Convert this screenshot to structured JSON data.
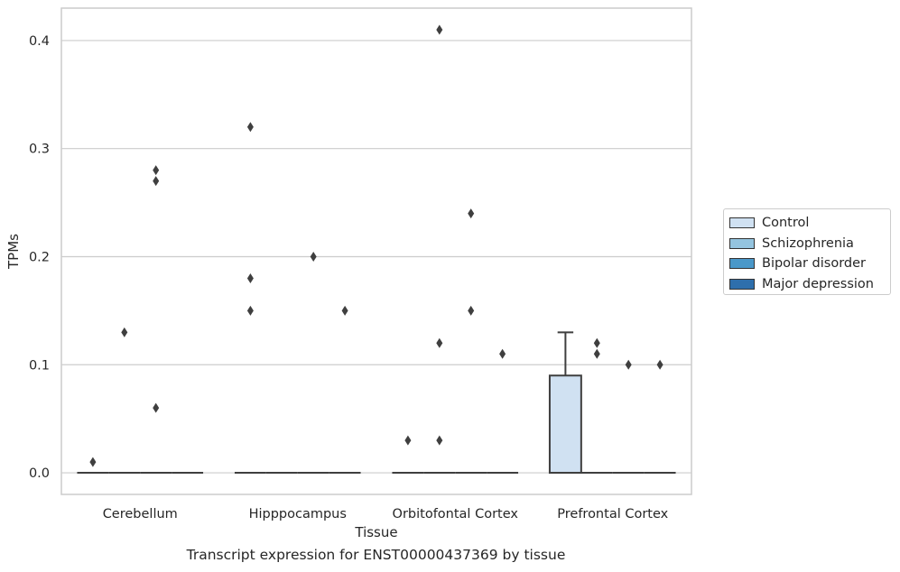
{
  "chart_data": {
    "type": "box",
    "title": "",
    "xlabel": "Tissue",
    "ylabel": "TPMs",
    "caption": "Transcript expression for ENST00000437369 by tissue",
    "ylim": [
      -0.02,
      0.43
    ],
    "yticks": [
      0.0,
      0.1,
      0.2,
      0.3,
      0.4
    ],
    "ytick_labels": [
      "0.0",
      "0.1",
      "0.2",
      "0.3",
      "0.4"
    ],
    "grid": "horizontal",
    "legend_position": "right",
    "categories": [
      "Cerebellum",
      "Hipppocampus",
      "Orbitofontal Cortex",
      "Prefrontal Cortex"
    ],
    "series": [
      {
        "name": "Control",
        "color": "#d0e1f2",
        "boxes": [
          {
            "q1": 0.0,
            "median": 0.0,
            "q3": 0.0,
            "whisker_low": 0.0,
            "whisker_high": 0.0,
            "outliers": [
              0.01
            ]
          },
          {
            "q1": 0.0,
            "median": 0.0,
            "q3": 0.0,
            "whisker_low": 0.0,
            "whisker_high": 0.0,
            "outliers": [
              0.32,
              0.18,
              0.15
            ]
          },
          {
            "q1": 0.0,
            "median": 0.0,
            "q3": 0.0,
            "whisker_low": 0.0,
            "whisker_high": 0.0,
            "outliers": [
              0.03
            ]
          },
          {
            "q1": 0.0,
            "median": 0.0,
            "q3": 0.09,
            "whisker_low": 0.0,
            "whisker_high": 0.13,
            "outliers": []
          }
        ]
      },
      {
        "name": "Schizophrenia",
        "color": "#94c4df",
        "boxes": [
          {
            "q1": 0.0,
            "median": 0.0,
            "q3": 0.0,
            "whisker_low": 0.0,
            "whisker_high": 0.0,
            "outliers": [
              0.13
            ]
          },
          {
            "q1": 0.0,
            "median": 0.0,
            "q3": 0.0,
            "whisker_low": 0.0,
            "whisker_high": 0.0,
            "outliers": []
          },
          {
            "q1": 0.0,
            "median": 0.0,
            "q3": 0.0,
            "whisker_low": 0.0,
            "whisker_high": 0.0,
            "outliers": [
              0.41,
              0.12,
              0.03
            ]
          },
          {
            "q1": 0.0,
            "median": 0.0,
            "q3": 0.0,
            "whisker_low": 0.0,
            "whisker_high": 0.0,
            "outliers": [
              0.12,
              0.11
            ]
          }
        ]
      },
      {
        "name": "Bipolar disorder",
        "color": "#4a98c9",
        "boxes": [
          {
            "q1": 0.0,
            "median": 0.0,
            "q3": 0.0,
            "whisker_low": 0.0,
            "whisker_high": 0.0,
            "outliers": [
              0.28,
              0.27,
              0.06
            ]
          },
          {
            "q1": 0.0,
            "median": 0.0,
            "q3": 0.0,
            "whisker_low": 0.0,
            "whisker_high": 0.0,
            "outliers": [
              0.2
            ]
          },
          {
            "q1": 0.0,
            "median": 0.0,
            "q3": 0.0,
            "whisker_low": 0.0,
            "whisker_high": 0.0,
            "outliers": [
              0.24,
              0.15
            ]
          },
          {
            "q1": 0.0,
            "median": 0.0,
            "q3": 0.0,
            "whisker_low": 0.0,
            "whisker_high": 0.0,
            "outliers": [
              0.1
            ]
          }
        ]
      },
      {
        "name": "Major depression",
        "color": "#2e6fac",
        "boxes": [
          {
            "q1": 0.0,
            "median": 0.0,
            "q3": 0.0,
            "whisker_low": 0.0,
            "whisker_high": 0.0,
            "outliers": []
          },
          {
            "q1": 0.0,
            "median": 0.0,
            "q3": 0.0,
            "whisker_low": 0.0,
            "whisker_high": 0.0,
            "outliers": [
              0.15
            ]
          },
          {
            "q1": 0.0,
            "median": 0.0,
            "q3": 0.0,
            "whisker_low": 0.0,
            "whisker_high": 0.0,
            "outliers": [
              0.11
            ]
          },
          {
            "q1": 0.0,
            "median": 0.0,
            "q3": 0.0,
            "whisker_low": 0.0,
            "whisker_high": 0.0,
            "outliers": [
              0.1
            ]
          }
        ]
      }
    ]
  }
}
